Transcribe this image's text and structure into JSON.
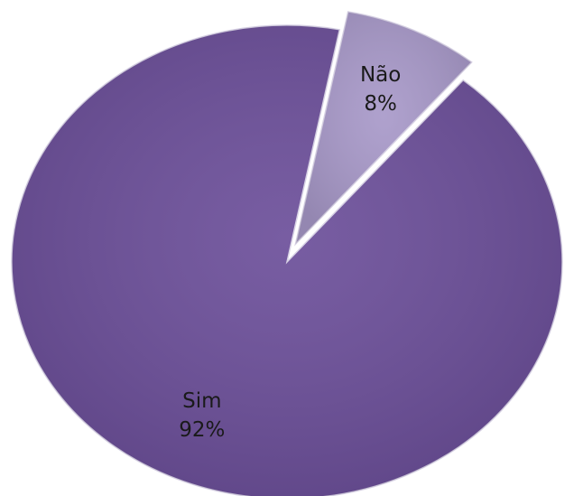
{
  "chart_data": {
    "type": "pie",
    "categories": [
      "Não",
      "Sim"
    ],
    "values": [
      8,
      92
    ],
    "value_labels": [
      "8%",
      "92%"
    ],
    "colors": [
      "#a899c9",
      "#6c4f9a"
    ]
  }
}
